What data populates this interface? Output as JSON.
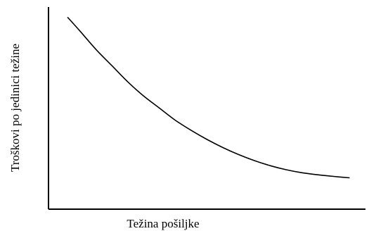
{
  "chart_data": {
    "type": "line",
    "xlabel": "Težina pošiljke",
    "ylabel": "Troškovi po jedinici težine",
    "grid": false,
    "x_ticks": false,
    "y_ticks": false,
    "xlim": [
      0,
      100
    ],
    "ylim": [
      0,
      100
    ],
    "series": [
      {
        "x": [
          6,
          10,
          15,
          20,
          25,
          30,
          35,
          40,
          45,
          50,
          55,
          60,
          65,
          70,
          75,
          80,
          85,
          90,
          95
        ],
        "values": [
          95,
          88,
          79,
          71,
          63,
          56,
          50,
          44,
          39,
          34.5,
          30.5,
          27,
          24,
          21.5,
          19.5,
          18,
          17,
          16.2,
          15.5
        ]
      }
    ]
  }
}
